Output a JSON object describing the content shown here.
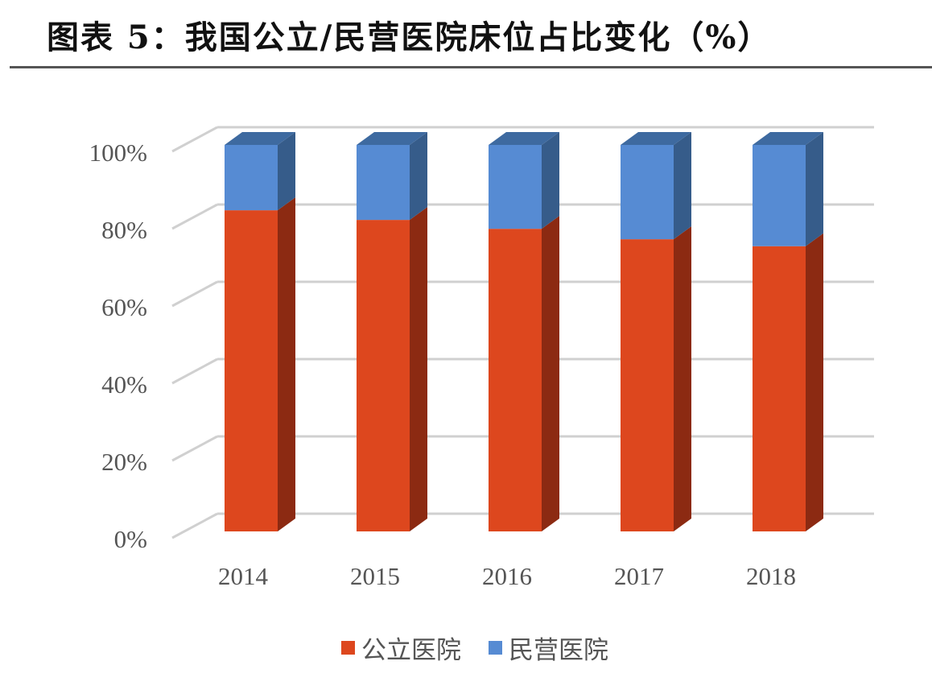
{
  "title": "图表 5：我国公立/民营医院床位占比变化（%）",
  "colors": {
    "public_front": "#DD471E",
    "public_side": "#8C2A12",
    "private_front": "#568BD3",
    "private_side": "#365C8A",
    "private_top": "#3E6AA0",
    "grid": "#D0D0D0"
  },
  "legend": {
    "items": [
      {
        "label": "公立医院",
        "color": "#DD471E"
      },
      {
        "label": "民营医院",
        "color": "#568BD3"
      }
    ]
  },
  "chart_data": {
    "type": "bar",
    "stacked": true,
    "percent_stacked": true,
    "three_d": true,
    "title": "图表 5：我国公立/民营医院床位占比变化（%）",
    "xlabel": "",
    "ylabel": "",
    "categories": [
      "2014",
      "2015",
      "2016",
      "2017",
      "2018"
    ],
    "series": [
      {
        "name": "公立医院",
        "values": [
          83.1,
          80.6,
          78.3,
          75.6,
          73.8
        ]
      },
      {
        "name": "民营医院",
        "values": [
          16.9,
          19.4,
          21.7,
          24.4,
          26.2
        ]
      }
    ],
    "yticks": [
      "0%",
      "20%",
      "40%",
      "60%",
      "80%",
      "100%"
    ],
    "ylim": [
      0,
      100
    ],
    "grid": true,
    "legend_position": "bottom"
  }
}
